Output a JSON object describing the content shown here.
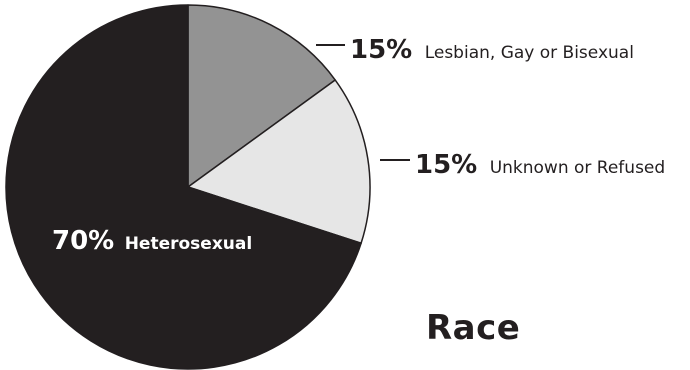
{
  "chart_data": {
    "type": "pie",
    "slices": [
      {
        "percent_label": "15%",
        "label": "Lesbian, Gay or Bisexual",
        "value": 15,
        "color": "#939393"
      },
      {
        "percent_label": "15%",
        "label": "Unknown or Refused",
        "value": 15,
        "color": "#e6e6e6"
      },
      {
        "percent_label": "70%",
        "label": "Heterosexual",
        "value": 70,
        "color": "#231f20"
      }
    ],
    "outline_color": "#231f20",
    "legend_placement": "right"
  },
  "section_heading": "Race"
}
